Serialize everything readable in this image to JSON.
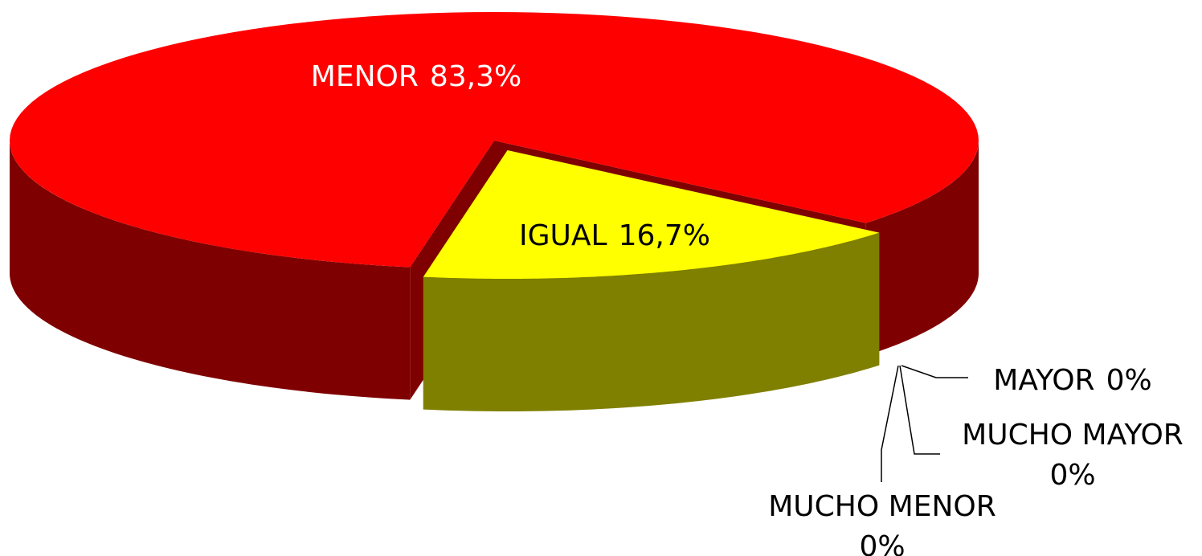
{
  "chart_data": {
    "type": "pie3d",
    "categories": [
      "MENOR",
      "IGUAL",
      "MAYOR",
      "MUCHO MAYOR",
      "MUCHO MENOR"
    ],
    "values": [
      83.3,
      16.7,
      0,
      0,
      0
    ],
    "value_labels": [
      "83,3%",
      "16,7%",
      "0%",
      "0%",
      "0%"
    ],
    "colors": [
      "#ff0000",
      "#ffff00",
      null,
      null,
      null
    ]
  }
}
